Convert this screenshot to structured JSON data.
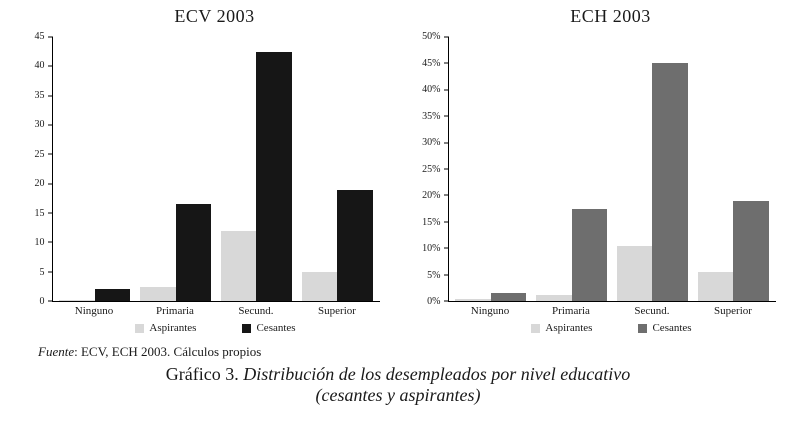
{
  "chart_data": [
    {
      "type": "bar",
      "title": "ECV 2003",
      "categories": [
        "Ninguno",
        "Primaria",
        "Secund.",
        "Superior"
      ],
      "series": [
        {
          "name": "Aspirantes",
          "color": "#d8d8d8",
          "values": [
            0.2,
            2.4,
            12,
            5
          ]
        },
        {
          "name": "Cesantes",
          "color": "#161616",
          "values": [
            2,
            16.5,
            42.5,
            19
          ]
        }
      ],
      "ylim": [
        0,
        45
      ],
      "ytick_step": 5,
      "tick_suffix": "",
      "grid": false,
      "legend_position": "bottom"
    },
    {
      "type": "bar",
      "title": "ECH 2003",
      "categories": [
        "Ninguno",
        "Primaria",
        "Secund.",
        "Superior"
      ],
      "series": [
        {
          "name": "Aspirantes",
          "color": "#d8d8d8",
          "values": [
            0.4,
            1.2,
            10.5,
            5.5
          ]
        },
        {
          "name": "Cesantes",
          "color": "#6e6e6e",
          "values": [
            1.5,
            17.5,
            45,
            19
          ]
        }
      ],
      "ylim": [
        0,
        50
      ],
      "ytick_step": 5,
      "tick_suffix": "%",
      "grid": false,
      "legend_position": "bottom"
    }
  ],
  "source": {
    "prefix": "Fuente",
    "rest": ": ECV, ECH 2003. Cálculos propios"
  },
  "caption": {
    "label": "Gráfico 3.",
    "text": " Distribución de los desempleados por nivel educativo",
    "line2": "(cesantes y aspirantes)"
  }
}
